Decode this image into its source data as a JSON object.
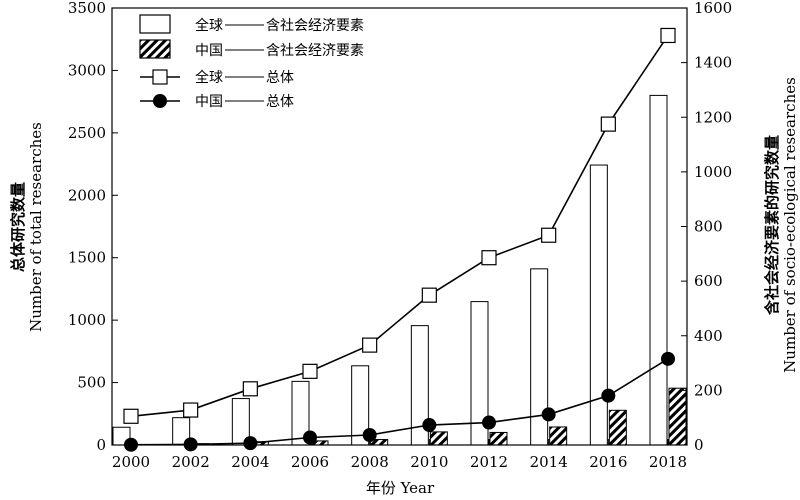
{
  "chart_data": {
    "type": "bar+line",
    "x": [
      2000,
      2002,
      2004,
      2006,
      2008,
      2010,
      2012,
      2014,
      2016,
      2018
    ],
    "x_ticks": [
      "2000",
      "2002",
      "2004",
      "2006",
      "2008",
      "2010",
      "2012",
      "2014",
      "2016",
      "2018"
    ],
    "xlabel": "年份 Year",
    "left_axis": {
      "label_cn": "总体研究数量",
      "label_en": "Number of total researches",
      "ylim": [
        0,
        3500
      ],
      "ticks": [
        "0",
        "500",
        "1000",
        "1500",
        "2000",
        "2500",
        "3000",
        "3500"
      ]
    },
    "right_axis": {
      "label_cn": "含社会经济要素的研究数量",
      "label_en": "Number of socio-ecological researches",
      "ylim": [
        0,
        1600
      ],
      "ticks": [
        "0",
        "200",
        "400",
        "600",
        "800",
        "1000",
        "1200",
        "1400",
        "1600"
      ]
    },
    "series": [
      {
        "name": "全球—— 含社会经济要素",
        "kind": "bar",
        "axis": "right",
        "style": "open",
        "values": [
          65,
          100,
          170,
          233,
          290,
          437,
          525,
          645,
          1025,
          1280
        ]
      },
      {
        "name": "中国—— 含社会经济要素",
        "kind": "bar",
        "axis": "right",
        "style": "hatched",
        "values": [
          2,
          5,
          12,
          15,
          20,
          48,
          46,
          66,
          127,
          208
        ]
      },
      {
        "name": "全球—— 总体",
        "kind": "line",
        "axis": "left",
        "marker": "open-square",
        "values": [
          230,
          280,
          450,
          590,
          800,
          1200,
          1500,
          1680,
          2570,
          3280
        ]
      },
      {
        "name": "中国—— 总体",
        "kind": "line",
        "axis": "left",
        "marker": "filled-circle",
        "values": [
          2,
          5,
          15,
          60,
          80,
          160,
          180,
          245,
          395,
          690
        ]
      }
    ],
    "legend": {
      "position": "top-left",
      "items": [
        {
          "region": "全球",
          "desc": "含社会经济要素"
        },
        {
          "region": "中国",
          "desc": "含社会经济要素"
        },
        {
          "region": "全球",
          "desc": "总体"
        },
        {
          "region": "中国",
          "desc": "总体"
        }
      ]
    },
    "grid": false
  }
}
